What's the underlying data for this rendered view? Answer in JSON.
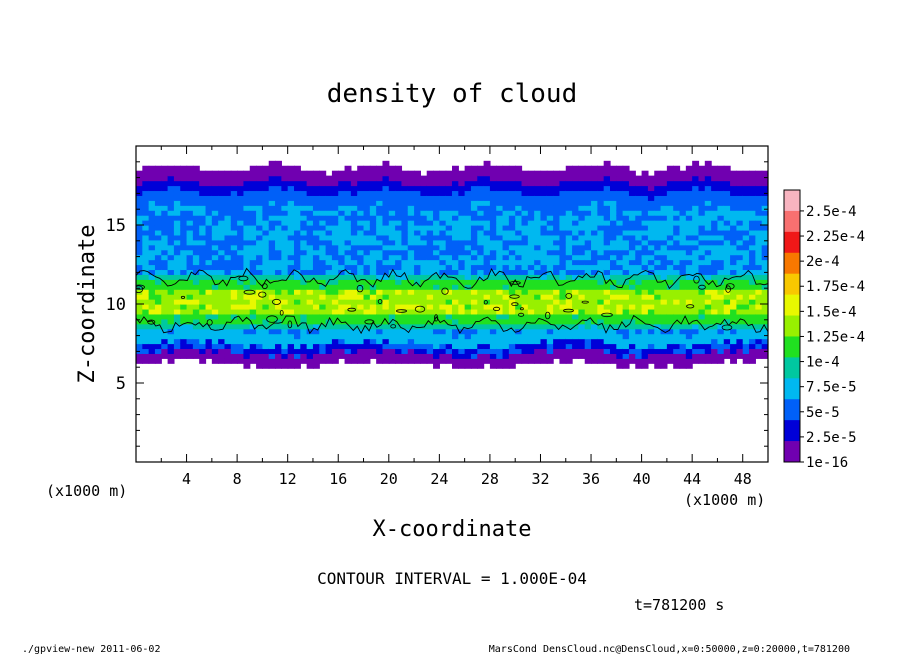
{
  "footer": {
    "program": "./gpview-new   2011-06-02",
    "source": "MarsCond_DensCloud.nc@DensCloud,x=0:50000,z=0:20000,t=781200"
  },
  "time_label": "t=781200 s",
  "contour_interval": "CONTOUR INTERVAL = 1.000E-04",
  "chart_data": {
    "type": "heatmap",
    "title": "density of cloud",
    "xlabel": "X-coordinate",
    "ylabel": "Z-coordinate",
    "x_unit": "(x1000 m)",
    "x_unit_left": "(x1000 m)",
    "xlim": [
      0,
      50
    ],
    "ylim": [
      0,
      20
    ],
    "x_ticks": [
      4,
      8,
      12,
      16,
      20,
      24,
      28,
      32,
      36,
      40,
      44,
      48
    ],
    "x_tick_labels": [
      "4",
      "8",
      "12",
      "16",
      "20",
      "24",
      "28",
      "32",
      "36",
      "40",
      "44",
      "48"
    ],
    "y_ticks": [
      5,
      10,
      15
    ],
    "y_tick_labels": [
      "5",
      "10",
      "15"
    ],
    "cloud_layer": {
      "z_bottom": 6.2,
      "z_top": 18.6,
      "dense_band_z": [
        8.5,
        11.8
      ],
      "contour_level": 0.0001
    },
    "colorbar": {
      "labels": [
        "2.5e-4",
        "2.25e-4",
        "2e-4",
        "1.75e-4",
        "1.5e-4",
        "1.25e-4",
        "1e-4",
        "7.5e-5",
        "5e-5",
        "2.5e-5",
        "1e-16"
      ],
      "colors": [
        "#f8b4c0",
        "#f87070",
        "#f01818",
        "#f87800",
        "#f8c800",
        "#e8f800",
        "#98f000",
        "#20e020",
        "#00c8a0",
        "#00b8f0",
        "#0060f8",
        "#0000d8",
        "#7000b0"
      ]
    }
  }
}
